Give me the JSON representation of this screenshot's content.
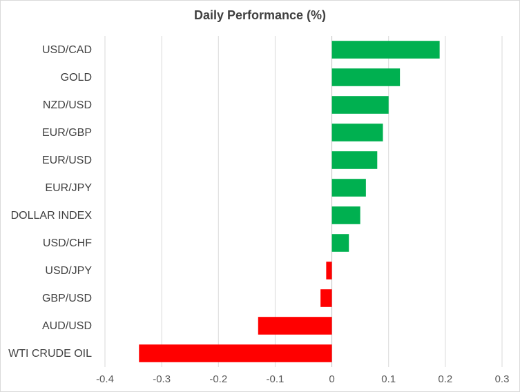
{
  "chart_data": {
    "type": "bar",
    "orientation": "horizontal",
    "title": "Daily Performance (%)",
    "categories": [
      "USD/CAD",
      "GOLD",
      "NZD/USD",
      "EUR/GBP",
      "EUR/USD",
      "EUR/JPY",
      "DOLLAR INDEX",
      "USD/CHF",
      "USD/JPY",
      "GBP/USD",
      "AUD/USD",
      "WTI CRUDE OIL"
    ],
    "values": [
      0.19,
      0.12,
      0.1,
      0.09,
      0.08,
      0.06,
      0.05,
      0.03,
      -0.01,
      -0.02,
      -0.13,
      -0.34
    ],
    "xlim": [
      -0.4,
      0.3
    ],
    "xticks": [
      "-0.4",
      "-0.3",
      "-0.2",
      "-0.1",
      "0",
      "0.1",
      "0.2",
      "0.3"
    ],
    "grid": "vertical",
    "legend": "none",
    "colors": {
      "positive": "#00b050",
      "negative": "#ff0000",
      "grid": "#d9d9d9",
      "axis": "#bfbfbf"
    }
  }
}
